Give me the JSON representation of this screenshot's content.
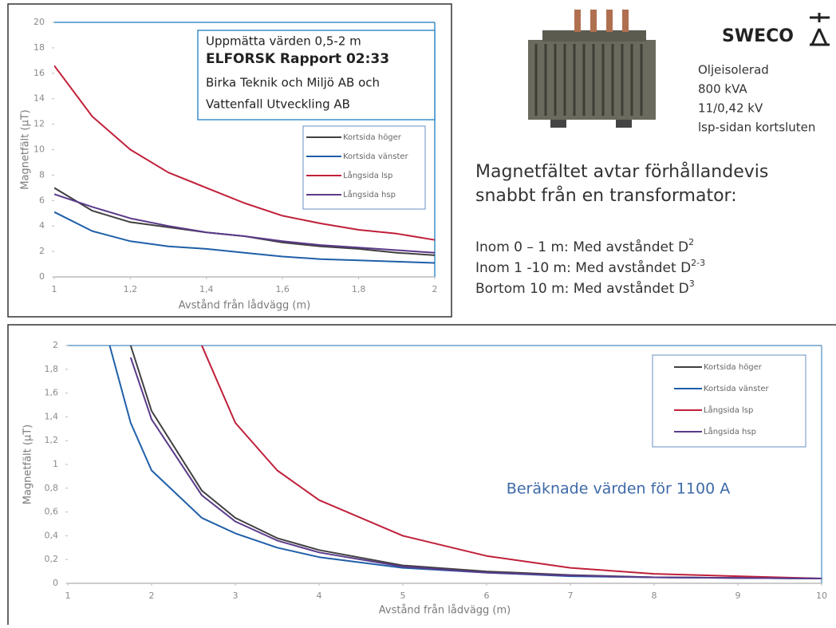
{
  "chart_data": [
    {
      "type": "line",
      "ylabel": "Magnetfält (µT)",
      "xlabel": "Avstånd från lådvägg (m)",
      "annotation": [
        "Uppmätta värden 0,5-2 m",
        "ELFORSK Rapport 02:33",
        "Birka Teknik och Miljö AB och",
        "Vattenfall Utveckling AB"
      ],
      "x": [
        1,
        1.1,
        1.2,
        1.3,
        1.4,
        1.5,
        1.6,
        1.7,
        1.8,
        1.9,
        2
      ],
      "series": [
        {
          "name": "Kortsida höger",
          "color": "#404040",
          "values": [
            7.0,
            5.2,
            4.3,
            3.9,
            3.5,
            3.2,
            2.7,
            2.4,
            2.2,
            1.9,
            1.7
          ]
        },
        {
          "name": "Kortsida vänster",
          "color": "#1f5fa8",
          "values": [
            5.1,
            3.6,
            2.8,
            2.4,
            2.2,
            1.9,
            1.6,
            1.4,
            1.3,
            1.2,
            1.1
          ]
        },
        {
          "name": "Långsida lsp",
          "color": "#c0203a",
          "values": [
            16.6,
            12.6,
            10.0,
            8.2,
            7.0,
            5.8,
            4.8,
            4.2,
            3.7,
            3.4,
            2.9
          ]
        },
        {
          "name": "Långsida hsp",
          "color": "#5a3a8a",
          "values": [
            6.5,
            5.5,
            4.6,
            4.0,
            3.5,
            3.2,
            2.8,
            2.5,
            2.3,
            2.1,
            1.9
          ]
        }
      ],
      "xlim": [
        1,
        2
      ],
      "ylim": [
        0,
        20
      ],
      "xticks": [
        1,
        {
          "value": 1.2,
          "label": "1,2"
        },
        {
          "value": 1.4,
          "label": "1,4"
        },
        {
          "value": 1.6,
          "label": "1,6"
        },
        {
          "value": 1.8,
          "label": "1,8"
        },
        2
      ],
      "yticks": [
        0,
        2,
        4,
        6,
        8,
        10,
        12,
        14,
        16,
        18,
        20
      ],
      "legend": "upper right",
      "grid": false
    },
    {
      "type": "line",
      "ylabel": "Magnetfält (µT)",
      "xlabel": "Avstånd från lådvägg (m)",
      "annotation": [
        "Beräknade värden för 1100 A"
      ],
      "x": [
        1.5,
        1.75,
        2,
        2.6,
        3,
        3.5,
        4,
        5,
        6,
        7,
        8,
        9,
        10
      ],
      "series": [
        {
          "name": "Kortsida höger",
          "color": "#404040",
          "values": [
            null,
            2.0,
            1.45,
            0.78,
            0.55,
            0.38,
            0.28,
            0.15,
            0.1,
            0.07,
            0.05,
            0.045,
            0.04
          ]
        },
        {
          "name": "Kortsida vänster",
          "color": "#1f5fa8",
          "values": [
            2.0,
            1.35,
            0.95,
            0.55,
            0.42,
            0.3,
            0.22,
            0.13,
            0.09,
            0.06,
            0.05,
            0.045,
            0.04
          ]
        },
        {
          "name": "Långsida lsp",
          "color": "#c0203a",
          "values": [
            null,
            null,
            null,
            2.0,
            1.35,
            0.95,
            0.7,
            0.4,
            0.23,
            0.13,
            0.08,
            0.06,
            0.04
          ]
        },
        {
          "name": "Långsida hsp",
          "color": "#5a3a8a",
          "values": [
            null,
            1.9,
            1.38,
            0.74,
            0.52,
            0.36,
            0.26,
            0.14,
            0.09,
            0.065,
            0.05,
            0.045,
            0.04
          ]
        }
      ],
      "xlim": [
        1,
        10
      ],
      "ylim": [
        0,
        2
      ],
      "xticks": [
        1,
        2,
        3,
        4,
        5,
        6,
        7,
        8,
        9,
        10
      ],
      "yticks": [
        0,
        {
          "value": 0.2,
          "label": "0,2"
        },
        {
          "value": 0.4,
          "label": "0,4"
        },
        {
          "value": 0.6,
          "label": "0,6"
        },
        {
          "value": 0.8,
          "label": "0,8"
        },
        1,
        {
          "value": 1.2,
          "label": "1,2"
        },
        {
          "value": 1.4,
          "label": "1,4"
        },
        {
          "value": 1.6,
          "label": "1,6"
        },
        {
          "value": 1.8,
          "label": "1,8"
        },
        2
      ],
      "legend": "upper right",
      "grid": false
    }
  ],
  "slide": {
    "logo": "SWECO",
    "specs": [
      "Oljeisolerad",
      "800 kVA",
      "11/0,42 kV",
      "lsp-sidan kortsluten"
    ],
    "headline": [
      "Magnetfältet avtar förhållandevis",
      "snabbt från en transformator:"
    ],
    "rules": [
      {
        "text": "Inom 0 – 1 m: Med avståndet D",
        "sup": "2"
      },
      {
        "text": "Inom 1 -10 m: Med avståndet D",
        "sup": "2-3"
      },
      {
        "text": "Bortom  10 m: Med avståndet D",
        "sup": "3"
      }
    ]
  }
}
